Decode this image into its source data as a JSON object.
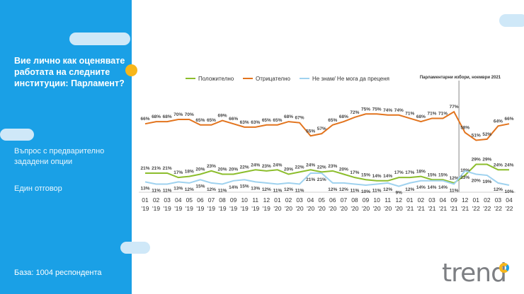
{
  "sidebar": {
    "question": "Вие лично как оценявате работата на следните институции: Парламент?",
    "note1": "Въпрос с предварително зададени опции",
    "note2": "Един отговор",
    "base": "База: 1004 респондента"
  },
  "brand": {
    "logo": "trend"
  },
  "colors": {
    "sidebar": "#1aa0e6",
    "accent": "#f7b61a",
    "positive": "#8cbd2c",
    "negative": "#e2741e",
    "dont_know": "#9fd2ef"
  },
  "chart_data": {
    "type": "line",
    "annotation": "Парламентарни избори, ноември 2021",
    "categories": [
      "01 '19",
      "02 '19",
      "03 '19",
      "04 '19",
      "05 '19",
      "06 '19",
      "07 '19",
      "08 '19",
      "09 '19",
      "10 '19",
      "11 '19",
      "12 '19",
      "01 '20",
      "02 '20",
      "03 '20",
      "04 '20",
      "05 '20",
      "06 '20",
      "07 '20",
      "08 '20",
      "09 '20",
      "10 '20",
      "11 '20",
      "12 '20",
      "01 '21",
      "02 '21",
      "03 '21",
      "04 '21",
      "09 '21",
      "12 '21",
      "01 '22",
      "02 '22",
      "03 '22",
      "04 '22"
    ],
    "series": [
      {
        "name": "Положително",
        "values": [
          21,
          21,
          21,
          17,
          18,
          20,
          23,
          20,
          20,
          22,
          24,
          23,
          24,
          20,
          22,
          24,
          22,
          23,
          20,
          17,
          15,
          14,
          14,
          17,
          17,
          18,
          15,
          15,
          12,
          19,
          29,
          29,
          24,
          24
        ]
      },
      {
        "name": "Отрицателно",
        "values": [
          66,
          68,
          68,
          70,
          70,
          65,
          65,
          69,
          66,
          63,
          63,
          65,
          65,
          68,
          67,
          55,
          57,
          65,
          68,
          72,
          75,
          75,
          74,
          74,
          71,
          68,
          71,
          71,
          77,
          58,
          51,
          52,
          64,
          66
        ]
      },
      {
        "name": "Не знам/ Не мога да преценя",
        "values": [
          13,
          11,
          11,
          13,
          12,
          15,
          12,
          11,
          14,
          15,
          13,
          12,
          11,
          12,
          11,
          21,
          21,
          12,
          12,
          11,
          10,
          11,
          12,
          9,
          12,
          14,
          14,
          14,
          11,
          23,
          20,
          19,
          12,
          10
        ]
      }
    ]
  }
}
